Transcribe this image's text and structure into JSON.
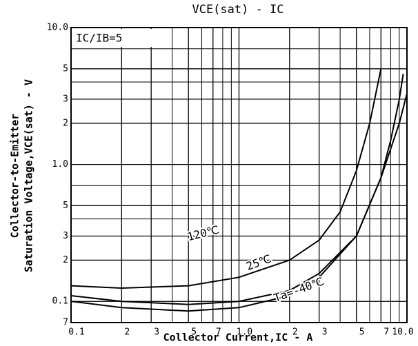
{
  "chart_data": {
    "type": "line",
    "title": "VCE(sat) - IC",
    "x_label": "Collector Current,IC - A",
    "y_label": [
      "Collector-to-Emitter",
      "Saturation Voltage,VCE(sat) - V"
    ],
    "annotation": "IC/IB=5",
    "log_x": true,
    "log_y": true,
    "grid": true,
    "color": "#000000",
    "xlim": [
      0.1,
      10
    ],
    "ylim": [
      0.07,
      10
    ],
    "xticks": [
      {
        "value": 0.1,
        "label": "0.1"
      },
      {
        "value": 0.2,
        "label": "2"
      },
      {
        "value": 0.3,
        "label": "3"
      },
      {
        "value": 0.5,
        "label": "5"
      },
      {
        "value": 0.7,
        "label": "7"
      },
      {
        "value": 1,
        "label": "1.0"
      },
      2,
      3,
      5,
      7,
      {
        "value": 10,
        "label": "10.0"
      }
    ],
    "minor_xticks": [
      0.4,
      0.6,
      0.8,
      0.9,
      4,
      6,
      8,
      9
    ],
    "yticks": [
      {
        "value": 10,
        "label": "10.0"
      },
      5,
      3,
      2,
      {
        "value": 1,
        "label": "1.0"
      },
      {
        "value": 0.5,
        "label": "5"
      },
      {
        "value": 0.3,
        "label": "3"
      },
      {
        "value": 0.2,
        "label": "2"
      },
      {
        "value": 0.1,
        "label": "0.1"
      },
      {
        "value": 0.07,
        "label": "7"
      }
    ],
    "minor_yticks": [
      7,
      4,
      0.7,
      0.4
    ],
    "series": [
      {
        "name": "120℃",
        "x": [
          0.1,
          0.2,
          0.5,
          1,
          2,
          3,
          4,
          5,
          6,
          7
        ],
        "values": [
          0.13,
          0.125,
          0.13,
          0.15,
          0.2,
          0.28,
          0.45,
          0.9,
          2,
          5
        ]
      },
      {
        "name": "25℃",
        "x": [
          0.1,
          0.2,
          0.5,
          1,
          2,
          3,
          5,
          7,
          8,
          9,
          9.5
        ],
        "values": [
          0.11,
          0.1,
          0.095,
          0.1,
          0.12,
          0.16,
          0.3,
          0.8,
          1.5,
          3,
          4.6
        ]
      },
      {
        "name": "Ta=-40℃",
        "x": [
          0.1,
          0.2,
          0.5,
          1,
          2,
          3,
          5,
          7,
          9,
          10
        ],
        "values": [
          0.1,
          0.09,
          0.085,
          0.09,
          0.11,
          0.15,
          0.3,
          0.8,
          2,
          3.3
        ]
      }
    ]
  }
}
